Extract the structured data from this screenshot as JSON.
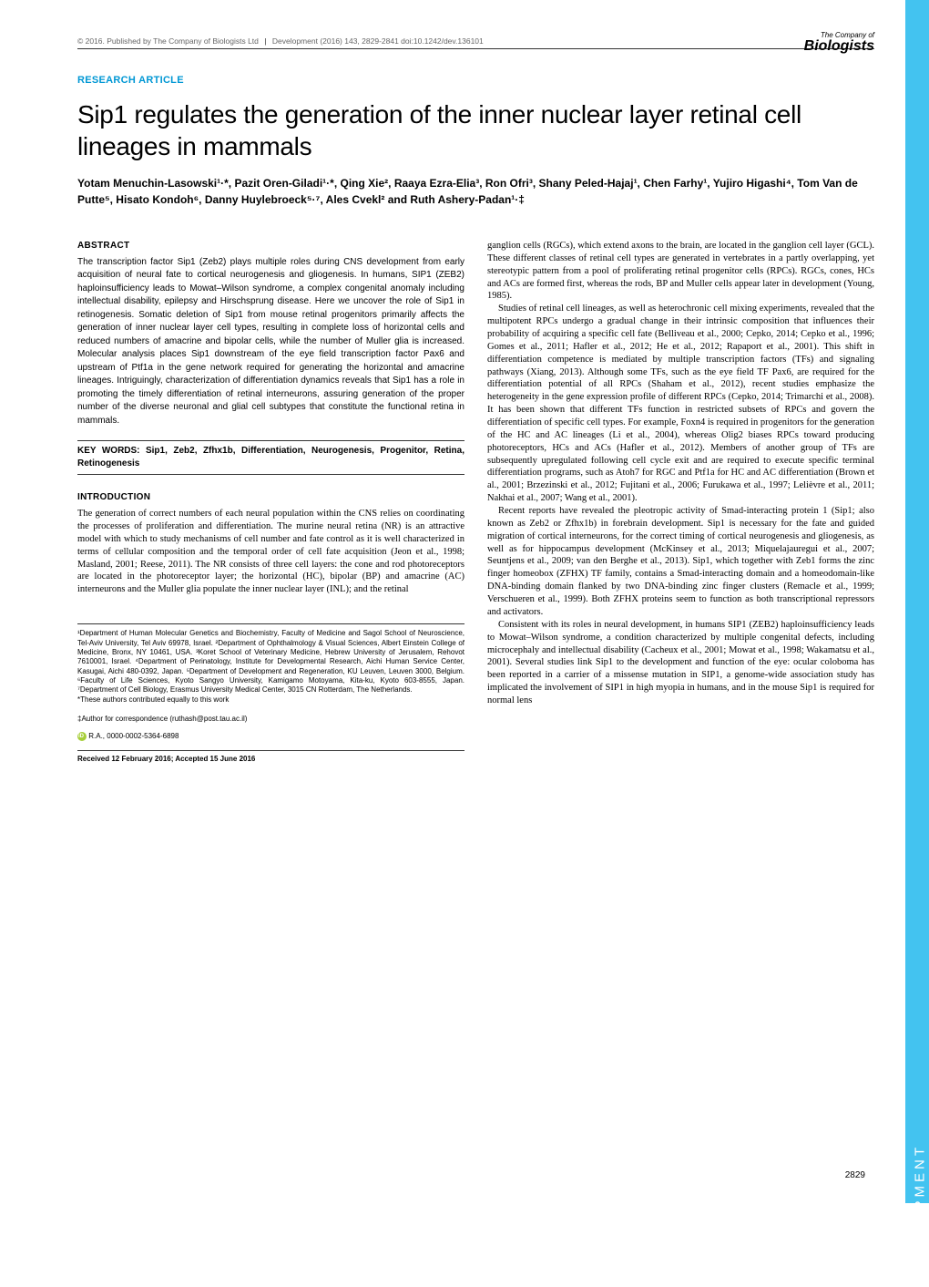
{
  "header": {
    "copyright": "© 2016. Published by The Company of Biologists Ltd",
    "journal": "Development (2016) 143, 2829-2841 doi:10.1242/dev.136101"
  },
  "logo": {
    "top": "The Company of",
    "main": "Biologists"
  },
  "article_type": "RESEARCH ARTICLE",
  "title": "Sip1 regulates the generation of the inner nuclear layer retinal cell lineages in mammals",
  "authors": "Yotam Menuchin-Lasowski¹·*, Pazit Oren-Giladi¹·*, Qing Xie², Raaya Ezra-Elia³, Ron Ofri³, Shany Peled-Hajaj¹, Chen Farhy¹, Yujiro Higashi⁴, Tom Van de Putte⁵, Hisato Kondoh⁶, Danny Huylebroeck⁵·⁷, Ales Cvekl² and Ruth Ashery-Padan¹·‡",
  "abstract_head": "ABSTRACT",
  "abstract": "The transcription factor Sip1 (Zeb2) plays multiple roles during CNS development from early acquisition of neural fate to cortical neurogenesis and gliogenesis. In humans, SIP1 (ZEB2) haploinsufficiency leads to Mowat–Wilson syndrome, a complex congenital anomaly including intellectual disability, epilepsy and Hirschsprung disease. Here we uncover the role of Sip1 in retinogenesis. Somatic deletion of Sip1 from mouse retinal progenitors primarily affects the generation of inner nuclear layer cell types, resulting in complete loss of horizontal cells and reduced numbers of amacrine and bipolar cells, while the number of Muller glia is increased. Molecular analysis places Sip1 downstream of the eye field transcription factor Pax6 and upstream of Ptf1a in the gene network required for generating the horizontal and amacrine lineages. Intriguingly, characterization of differentiation dynamics reveals that Sip1 has a role in promoting the timely differentiation of retinal interneurons, assuring generation of the proper number of the diverse neuronal and glial cell subtypes that constitute the functional retina in mammals.",
  "keywords": "KEY WORDS: Sip1, Zeb2, Zfhx1b, Differentiation, Neurogenesis, Progenitor, Retina, Retinogenesis",
  "intro_head": "INTRODUCTION",
  "intro_p1": "The generation of correct numbers of each neural population within the CNS relies on coordinating the processes of proliferation and differentiation. The murine neural retina (NR) is an attractive model with which to study mechanisms of cell number and fate control as it is well characterized in terms of cellular composition and the temporal order of cell fate acquisition (Jeon et al., 1998; Masland, 2001; Reese, 2011). The NR consists of three cell layers: the cone and rod photoreceptors are located in the photoreceptor layer; the horizontal (HC), bipolar (BP) and amacrine (AC) interneurons and the Muller glia populate the inner nuclear layer (INL); and the retinal",
  "col2_p1": "ganglion cells (RGCs), which extend axons to the brain, are located in the ganglion cell layer (GCL). These different classes of retinal cell types are generated in vertebrates in a partly overlapping, yet stereotypic pattern from a pool of proliferating retinal progenitor cells (RPCs). RGCs, cones, HCs and ACs are formed first, whereas the rods, BP and Muller cells appear later in development (Young, 1985).",
  "col2_p2": "Studies of retinal cell lineages, as well as heterochronic cell mixing experiments, revealed that the multipotent RPCs undergo a gradual change in their intrinsic composition that influences their probability of acquiring a specific cell fate (Belliveau et al., 2000; Cepko, 2014; Cepko et al., 1996; Gomes et al., 2011; Hafler et al., 2012; He et al., 2012; Rapaport et al., 2001). This shift in differentiation competence is mediated by multiple transcription factors (TFs) and signaling pathways (Xiang, 2013). Although some TFs, such as the eye field TF Pax6, are required for the differentiation potential of all RPCs (Shaham et al., 2012), recent studies emphasize the heterogeneity in the gene expression profile of different RPCs (Cepko, 2014; Trimarchi et al., 2008). It has been shown that different TFs function in restricted subsets of RPCs and govern the differentiation of specific cell types. For example, Foxn4 is required in progenitors for the generation of the HC and AC lineages (Li et al., 2004), whereas Olig2 biases RPCs toward producing photoreceptors, HCs and ACs (Hafler et al., 2012). Members of another group of TFs are subsequently upregulated following cell cycle exit and are required to execute specific terminal differentiation programs, such as Atoh7 for RGC and Ptf1a for HC and AC differentiation (Brown et al., 2001; Brzezinski et al., 2012; Fujitani et al., 2006; Furukawa et al., 1997; Lelièvre et al., 2011; Nakhai et al., 2007; Wang et al., 2001).",
  "col2_p3": "Recent reports have revealed the pleotropic activity of Smad-interacting protein 1 (Sip1; also known as Zeb2 or Zfhx1b) in forebrain development. Sip1 is necessary for the fate and guided migration of cortical interneurons, for the correct timing of cortical neurogenesis and gliogenesis, as well as for hippocampus development (McKinsey et al., 2013; Miquelajauregui et al., 2007; Seuntjens et al., 2009; van den Berghe et al., 2013). Sip1, which together with Zeb1 forms the zinc finger homeobox (ZFHX) TF family, contains a Smad-interacting domain and a homeodomain-like DNA-binding domain flanked by two DNA-binding zinc finger clusters (Remacle et al., 1999; Verschueren et al., 1999). Both ZFHX proteins seem to function as both transcriptional repressors and activators.",
  "col2_p4": "Consistent with its roles in neural development, in humans SIP1 (ZEB2) haploinsufficiency leads to Mowat–Wilson syndrome, a condition characterized by multiple congenital defects, including microcephaly and intellectual disability (Cacheux et al., 2001; Mowat et al., 1998; Wakamatsu et al., 2001). Several studies link Sip1 to the development and function of the eye: ocular coloboma has been reported in a carrier of a missense mutation in SIP1, a genome-wide association study has implicated the involvement of SIP1 in high myopia in humans, and in the mouse Sip1 is required for normal lens",
  "affiliations": "¹Department of Human Molecular Genetics and Biochemistry, Faculty of Medicine and Sagol School of Neuroscience, Tel-Aviv University, Tel Aviv 69978, Israel. ²Department of Ophthalmology & Visual Sciences, Albert Einstein College of Medicine, Bronx, NY 10461, USA. ³Koret School of Veterinary Medicine, Hebrew University of Jerusalem, Rehovot 7610001, Israel. ⁴Department of Perinatology, Institute for Developmental Research, Aichi Human Service Center, Kasugai, Aichi 480-0392, Japan. ⁵Department of Development and Regeneration, KU Leuven, Leuven 3000, Belgium. ⁶Faculty of Life Sciences, Kyoto Sangyo University, Kamigamo Motoyama, Kita-ku, Kyoto 603-8555, Japan. ⁷Department of Cell Biology, Erasmus University Medical Center, 3015 CN Rotterdam, The Netherlands.",
  "equal_contrib": "*These authors contributed equally to this work",
  "correspondence": "‡Author for correspondence (ruthash@post.tau.ac.il)",
  "orcid": "R.A., 0000-0002-5364-6898",
  "received": "Received 12 February 2016; Accepted 15 June 2016",
  "side_tab": "DEVELOPMENT",
  "page_num": "2829"
}
